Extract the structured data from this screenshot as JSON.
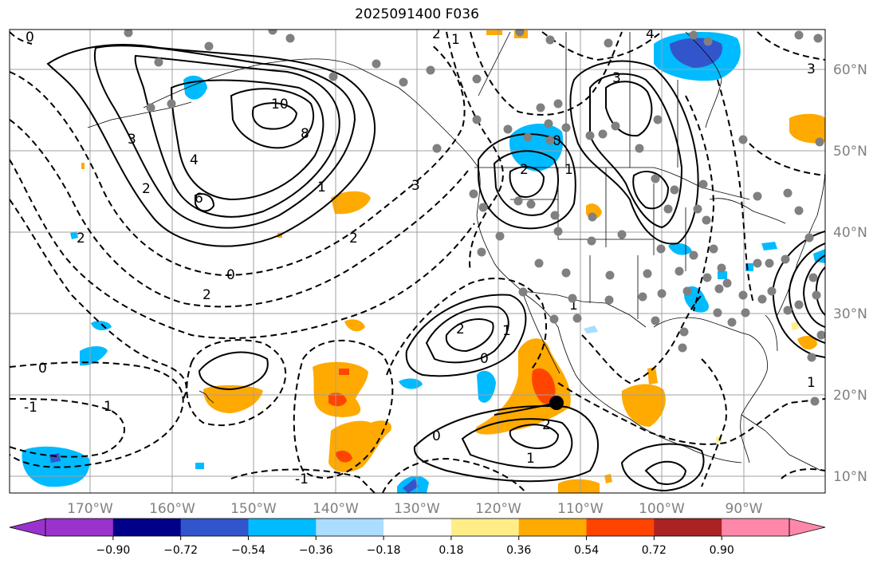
{
  "title": "2025091400 F036",
  "colors": {
    "contour": "#000000",
    "grid": "#a0a0a0",
    "coast": "#000000",
    "station": "#808080",
    "storm_marker": "#000000"
  },
  "lat_labels": [
    "60°N",
    "50°N",
    "40°N",
    "30°N",
    "20°N",
    "10°N"
  ],
  "lon_labels": [
    "170°W",
    "160°W",
    "150°W",
    "140°W",
    "130°W",
    "120°W",
    "110°W",
    "100°W",
    "90°W"
  ],
  "colorbar": {
    "ticks": [
      "−0.90",
      "−0.72",
      "−0.54",
      "−0.36",
      "−0.18",
      "0.18",
      "0.36",
      "0.54",
      "0.72",
      "0.90"
    ],
    "colors": [
      "#9933cc",
      "#000088",
      "#3355cc",
      "#00bbff",
      "#aaddff",
      "#ffffff",
      "#ffee88",
      "#ffaa00",
      "#ff4400",
      "#aa2222",
      "#ff88aa"
    ]
  },
  "contour_labels": [
    "0",
    "1",
    "2",
    "3",
    "4",
    "6",
    "8",
    "10",
    "1",
    "2",
    "3",
    "4",
    "0",
    "1",
    "2",
    "3",
    "2",
    "1",
    "0",
    "2",
    "1",
    "0",
    "2",
    "1",
    "0",
    "-1",
    "-1",
    "2",
    "0",
    "1",
    "1",
    "2",
    "3"
  ],
  "shading_legend": {
    "negative": [
      "#aaddff",
      "#00bbff",
      "#3355cc"
    ],
    "positive": [
      "#ffee88",
      "#ffaa00",
      "#ff4400",
      "#aa2222"
    ]
  }
}
